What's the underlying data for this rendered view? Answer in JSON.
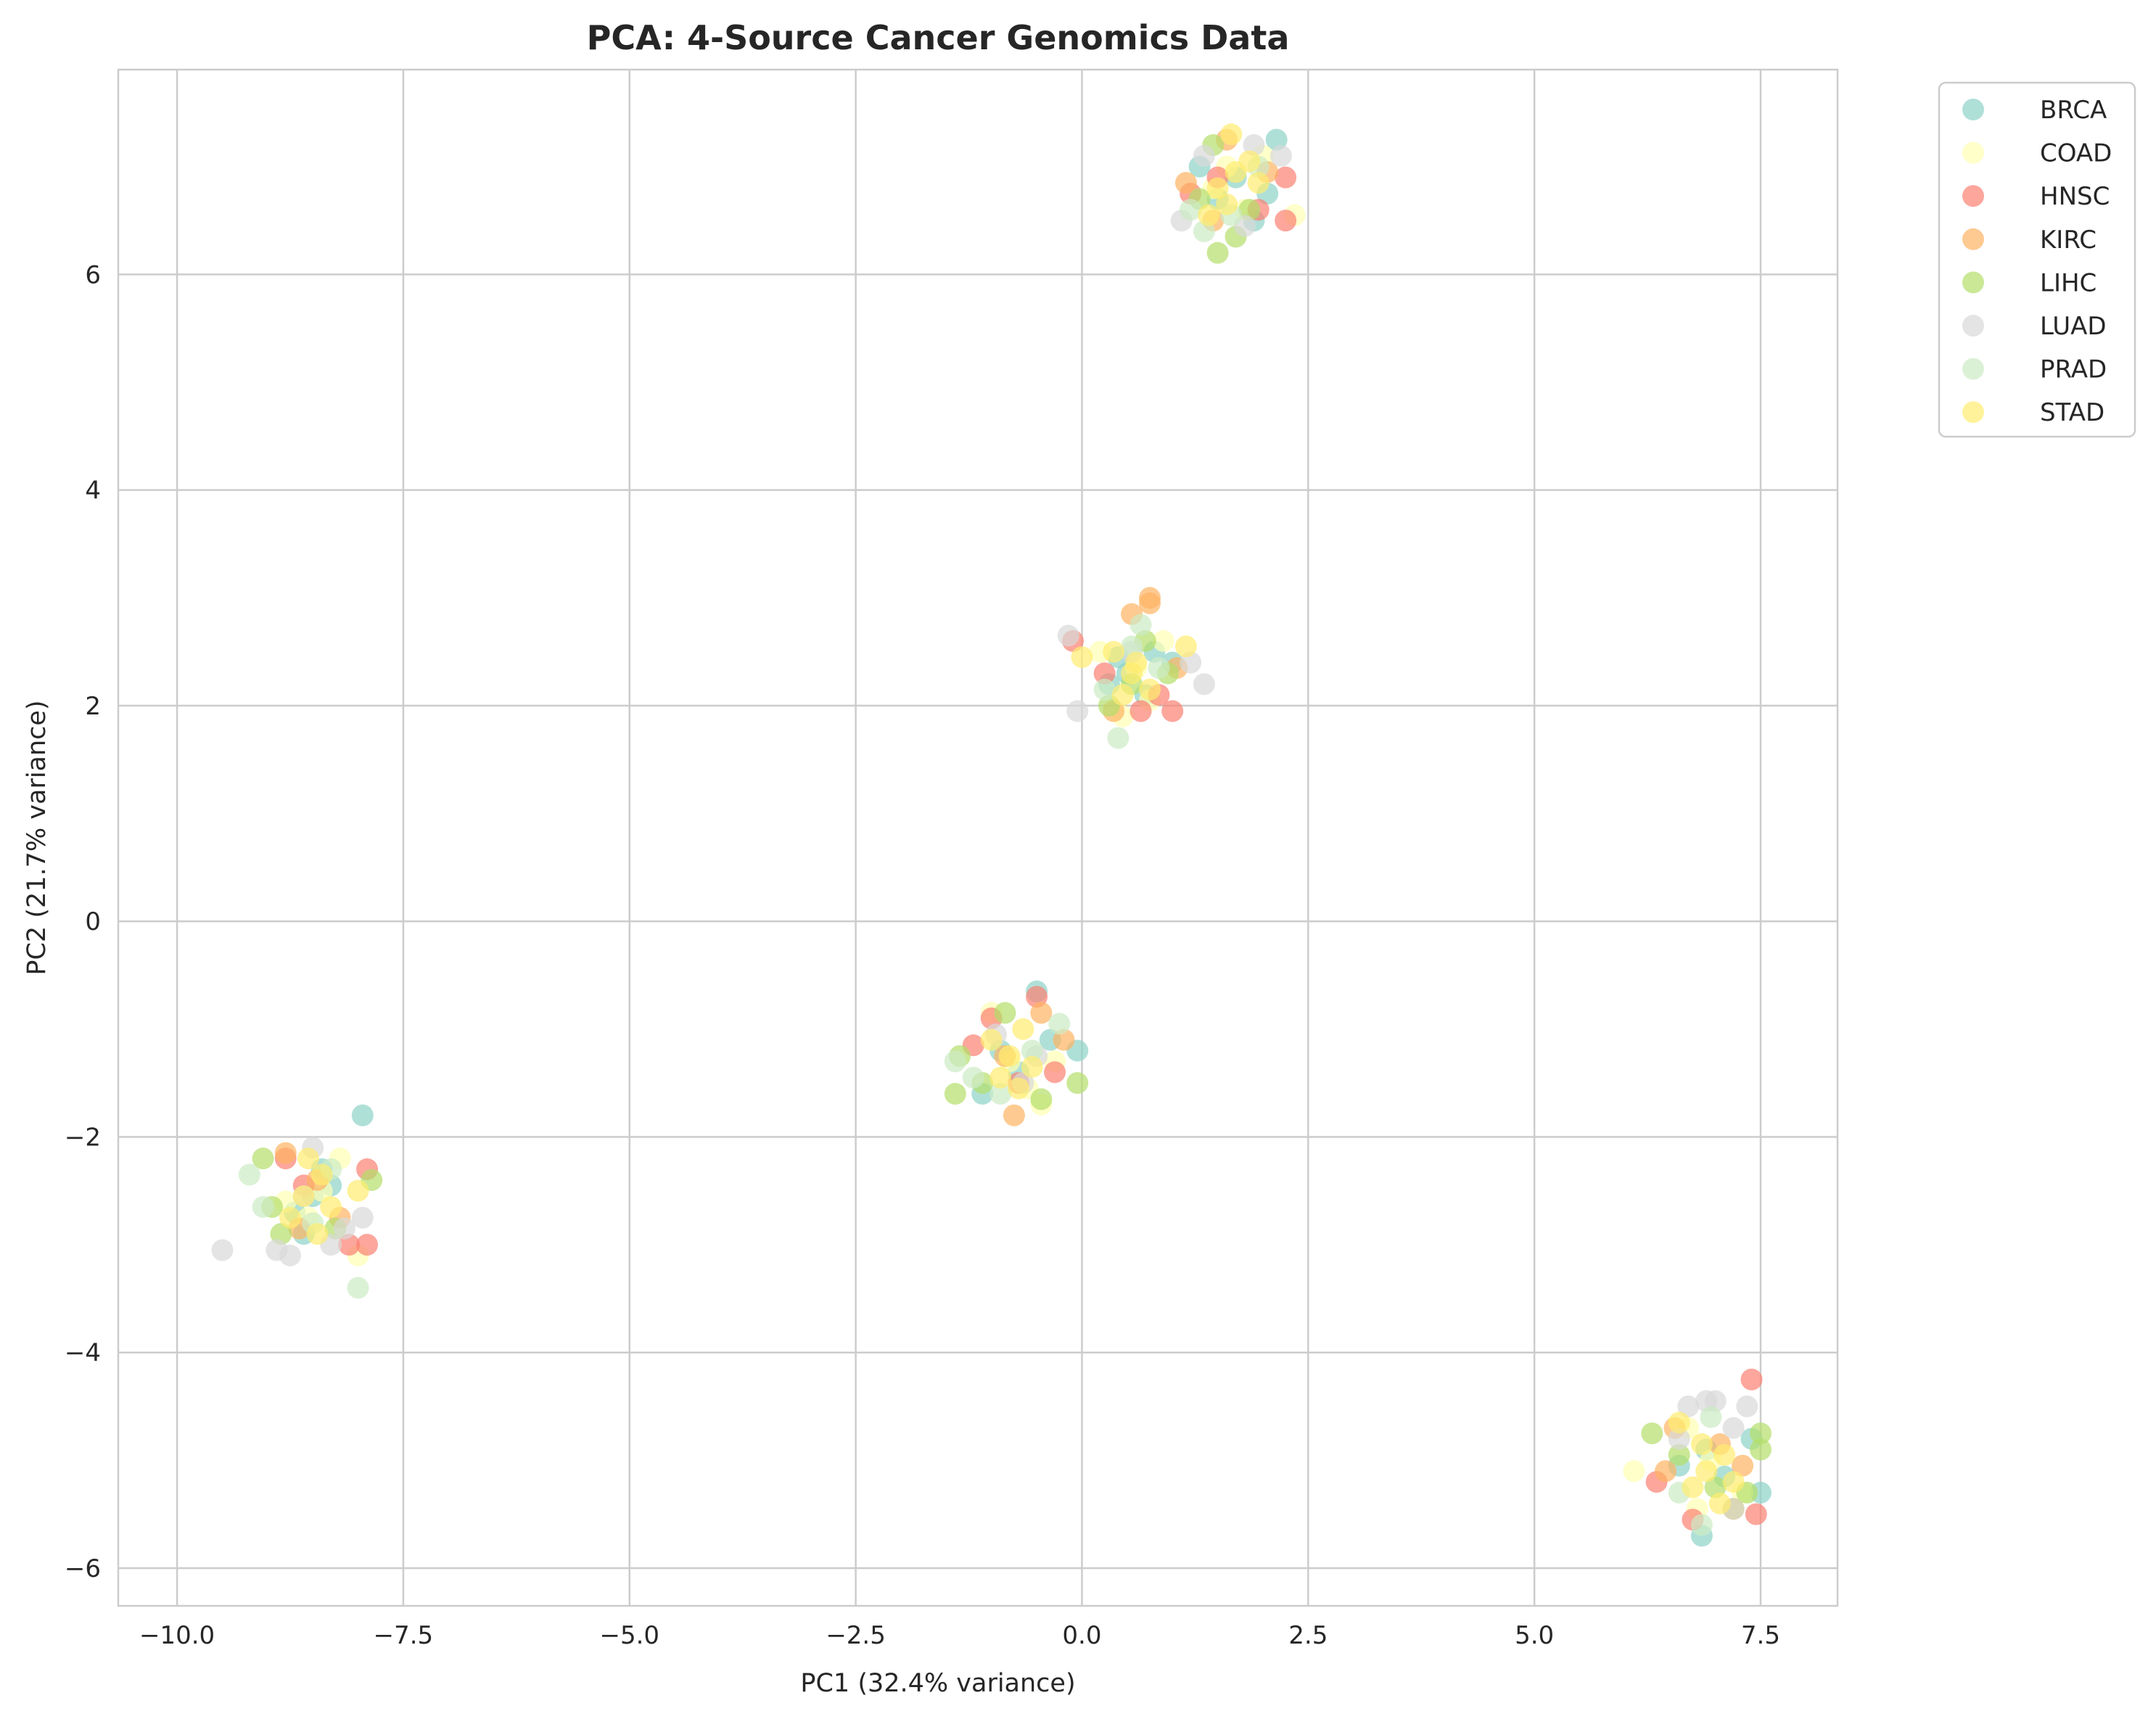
{
  "chart_data": {
    "type": "scatter",
    "title": "PCA: 4-Source Cancer Genomics Data",
    "xlabel": "PC1 (32.4% variance)",
    "ylabel": "PC2 (21.7% variance)",
    "xlim": [
      -10.65,
      8.35
    ],
    "ylim": [
      -6.35,
      7.9
    ],
    "x_ticks": [
      -10.0,
      -7.5,
      -5.0,
      -2.5,
      0.0,
      2.5,
      5.0,
      7.5
    ],
    "x_tick_labels": [
      "−10.0",
      "−7.5",
      "−5.0",
      "−2.5",
      "0.0",
      "2.5",
      "5.0",
      "7.5"
    ],
    "y_ticks": [
      -6,
      -4,
      -2,
      0,
      2,
      4,
      6
    ],
    "y_tick_labels": [
      "−6",
      "−4",
      "−2",
      "0",
      "2",
      "4",
      "6"
    ],
    "grid": true,
    "legend_position": "outside-top-right",
    "marker_alpha": 0.7,
    "series": [
      {
        "name": "BRCA",
        "color": "#8dd3c7",
        "points": [
          [
            -8.5,
            -2.55
          ],
          [
            -8.3,
            -2.45
          ],
          [
            -8.7,
            -2.7
          ],
          [
            -7.95,
            -1.8
          ],
          [
            -8.4,
            -2.3
          ],
          [
            -8.6,
            -2.9
          ],
          [
            -0.9,
            -1.2
          ],
          [
            -0.5,
            -0.65
          ],
          [
            -0.05,
            -1.2
          ],
          [
            -1.1,
            -1.6
          ],
          [
            -0.7,
            -1.4
          ],
          [
            -0.35,
            -1.1
          ],
          [
            0.5,
            2.3
          ],
          [
            0.8,
            2.5
          ],
          [
            0.3,
            2.2
          ],
          [
            0.7,
            2.1
          ],
          [
            1.0,
            2.4
          ],
          [
            0.4,
            2.45
          ],
          [
            1.7,
            6.9
          ],
          [
            2.15,
            7.25
          ],
          [
            1.5,
            6.7
          ],
          [
            1.9,
            6.5
          ],
          [
            1.3,
            7.0
          ],
          [
            2.05,
            6.75
          ],
          [
            6.9,
            -4.9
          ],
          [
            7.4,
            -4.8
          ],
          [
            6.85,
            -5.7
          ],
          [
            7.5,
            -5.3
          ],
          [
            7.1,
            -5.15
          ],
          [
            6.6,
            -5.05
          ]
        ]
      },
      {
        "name": "COAD",
        "color": "#ffffb3",
        "points": [
          [
            -8.4,
            -2.5
          ],
          [
            -8.0,
            -3.1
          ],
          [
            -8.8,
            -2.6
          ],
          [
            -8.2,
            -2.2
          ],
          [
            -8.55,
            -2.75
          ],
          [
            -0.8,
            -1.3
          ],
          [
            -0.45,
            -1.7
          ],
          [
            -1.0,
            -0.85
          ],
          [
            -0.6,
            -1.55
          ],
          [
            -0.3,
            -1.3
          ],
          [
            0.6,
            2.35
          ],
          [
            0.45,
            1.9
          ],
          [
            0.9,
            2.6
          ],
          [
            0.2,
            2.5
          ],
          [
            0.75,
            2.05
          ],
          [
            1.6,
            7.0
          ],
          [
            2.35,
            6.55
          ],
          [
            1.45,
            6.8
          ],
          [
            2.0,
            7.1
          ],
          [
            1.8,
            6.6
          ],
          [
            6.1,
            -5.1
          ],
          [
            6.95,
            -5.0
          ],
          [
            6.7,
            -4.7
          ],
          [
            7.3,
            -5.3
          ],
          [
            6.8,
            -5.45
          ]
        ]
      },
      {
        "name": "HNSC",
        "color": "#fb8072",
        "points": [
          [
            -8.8,
            -2.2
          ],
          [
            -7.9,
            -2.3
          ],
          [
            -7.9,
            -3.0
          ],
          [
            -8.1,
            -3.0
          ],
          [
            -8.6,
            -2.45
          ],
          [
            -1.0,
            -0.9
          ],
          [
            -0.5,
            -0.7
          ],
          [
            -0.7,
            -1.5
          ],
          [
            -1.2,
            -1.15
          ],
          [
            -0.3,
            -1.4
          ],
          [
            -0.1,
            2.6
          ],
          [
            1.0,
            1.95
          ],
          [
            0.65,
            1.95
          ],
          [
            0.25,
            2.3
          ],
          [
            0.85,
            2.1
          ],
          [
            2.25,
            6.9
          ],
          [
            2.25,
            6.5
          ],
          [
            1.5,
            6.9
          ],
          [
            1.2,
            6.75
          ],
          [
            1.95,
            6.6
          ],
          [
            7.4,
            -4.25
          ],
          [
            7.45,
            -5.5
          ],
          [
            6.35,
            -5.2
          ],
          [
            6.75,
            -5.55
          ],
          [
            7.2,
            -5.45
          ]
        ]
      },
      {
        "name": "KIRC",
        "color": "#fdb462",
        "points": [
          [
            -8.8,
            -2.15
          ],
          [
            -8.45,
            -2.4
          ],
          [
            -8.2,
            -2.75
          ],
          [
            -8.65,
            -2.85
          ],
          [
            -0.75,
            -1.8
          ],
          [
            -0.45,
            -0.85
          ],
          [
            -0.85,
            -1.25
          ],
          [
            -0.2,
            -1.1
          ],
          [
            0.75,
            3.0
          ],
          [
            0.55,
            2.85
          ],
          [
            0.75,
            2.95
          ],
          [
            0.35,
            1.95
          ],
          [
            1.05,
            2.35
          ],
          [
            1.6,
            7.25
          ],
          [
            1.15,
            6.85
          ],
          [
            1.45,
            6.5
          ],
          [
            2.05,
            6.95
          ],
          [
            6.55,
            -4.7
          ],
          [
            7.3,
            -5.05
          ],
          [
            6.45,
            -5.1
          ],
          [
            7.05,
            -4.85
          ]
        ]
      },
      {
        "name": "LIHC",
        "color": "#b3de69",
        "points": [
          [
            -9.05,
            -2.2
          ],
          [
            -8.85,
            -2.9
          ],
          [
            -7.85,
            -2.4
          ],
          [
            -8.95,
            -2.65
          ],
          [
            -8.25,
            -2.85
          ],
          [
            -1.35,
            -1.25
          ],
          [
            -1.4,
            -1.6
          ],
          [
            -0.45,
            -1.65
          ],
          [
            -0.05,
            -1.5
          ],
          [
            -1.1,
            -1.5
          ],
          [
            -0.85,
            -0.85
          ],
          [
            0.3,
            2.0
          ],
          [
            0.7,
            2.6
          ],
          [
            0.55,
            2.2
          ],
          [
            0.95,
            2.3
          ],
          [
            1.5,
            6.2
          ],
          [
            1.7,
            6.35
          ],
          [
            1.3,
            6.7
          ],
          [
            1.45,
            7.2
          ],
          [
            1.85,
            6.6
          ],
          [
            7.5,
            -4.75
          ],
          [
            6.3,
            -4.75
          ],
          [
            7.5,
            -4.9
          ],
          [
            7.0,
            -5.25
          ],
          [
            6.6,
            -4.95
          ],
          [
            7.35,
            -5.3
          ]
        ]
      },
      {
        "name": "LUAD",
        "color": "#d9d9d9",
        "points": [
          [
            -9.5,
            -3.05
          ],
          [
            -8.9,
            -3.05
          ],
          [
            -8.75,
            -3.1
          ],
          [
            -8.5,
            -2.1
          ],
          [
            -8.15,
            -2.85
          ],
          [
            -7.95,
            -2.75
          ],
          [
            -8.3,
            -3.0
          ],
          [
            -8.6,
            -2.55
          ],
          [
            -0.95,
            -1.05
          ],
          [
            -0.5,
            -1.25
          ],
          [
            -0.65,
            -1.5
          ],
          [
            -0.15,
            2.65
          ],
          [
            1.2,
            2.4
          ],
          [
            1.35,
            2.2
          ],
          [
            -0.05,
            1.95
          ],
          [
            0.55,
            2.5
          ],
          [
            1.1,
            6.5
          ],
          [
            1.9,
            7.2
          ],
          [
            2.2,
            7.1
          ],
          [
            1.8,
            6.45
          ],
          [
            1.35,
            7.1
          ],
          [
            7.0,
            -4.45
          ],
          [
            6.7,
            -4.5
          ],
          [
            7.35,
            -4.5
          ],
          [
            6.9,
            -4.45
          ],
          [
            7.2,
            -4.7
          ],
          [
            6.6,
            -4.8
          ]
        ]
      },
      {
        "name": "PRAD",
        "color": "#ccebc5",
        "points": [
          [
            -9.2,
            -2.35
          ],
          [
            -9.05,
            -2.65
          ],
          [
            -8.3,
            -2.3
          ],
          [
            -8.0,
            -3.4
          ],
          [
            -8.5,
            -2.8
          ],
          [
            -1.4,
            -1.3
          ],
          [
            -0.25,
            -0.95
          ],
          [
            -0.55,
            -1.2
          ],
          [
            -0.9,
            -1.6
          ],
          [
            -1.2,
            -1.45
          ],
          [
            0.4,
            1.7
          ],
          [
            0.25,
            2.15
          ],
          [
            0.65,
            2.75
          ],
          [
            0.55,
            2.55
          ],
          [
            0.85,
            2.35
          ],
          [
            1.2,
            6.6
          ],
          [
            1.35,
            6.4
          ],
          [
            1.65,
            6.55
          ],
          [
            1.95,
            7.0
          ],
          [
            6.85,
            -5.6
          ],
          [
            6.6,
            -5.3
          ],
          [
            7.2,
            -5.45
          ],
          [
            6.95,
            -4.6
          ]
        ]
      },
      {
        "name": "STAD",
        "color": "#ffed6f",
        "points": [
          [
            -8.6,
            -2.55
          ],
          [
            -8.4,
            -2.35
          ],
          [
            -8.75,
            -2.75
          ],
          [
            -8.3,
            -2.65
          ],
          [
            -8.0,
            -2.5
          ],
          [
            -8.55,
            -2.2
          ],
          [
            -8.45,
            -2.9
          ],
          [
            -0.8,
            -1.25
          ],
          [
            -0.65,
            -1.0
          ],
          [
            -0.9,
            -1.45
          ],
          [
            -0.55,
            -1.35
          ],
          [
            -1.0,
            -1.1
          ],
          [
            -0.7,
            -1.55
          ],
          [
            0.55,
            2.3
          ],
          [
            0.35,
            2.5
          ],
          [
            0.75,
            2.15
          ],
          [
            0.6,
            2.4
          ],
          [
            0.45,
            2.1
          ],
          [
            1.15,
            2.55
          ],
          [
            0.0,
            2.45
          ],
          [
            1.7,
            6.95
          ],
          [
            1.5,
            6.8
          ],
          [
            1.85,
            7.05
          ],
          [
            1.6,
            6.65
          ],
          [
            1.95,
            6.85
          ],
          [
            1.65,
            7.3
          ],
          [
            1.4,
            6.55
          ],
          [
            6.9,
            -5.1
          ],
          [
            7.1,
            -4.95
          ],
          [
            6.75,
            -5.25
          ],
          [
            7.2,
            -5.2
          ],
          [
            6.6,
            -4.65
          ],
          [
            7.05,
            -5.4
          ],
          [
            6.85,
            -4.85
          ]
        ]
      }
    ]
  }
}
